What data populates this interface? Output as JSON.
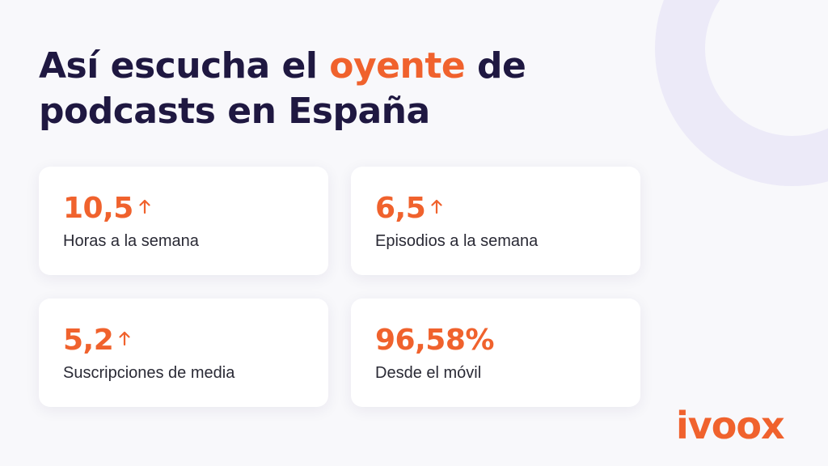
{
  "headline": {
    "part1": "Así escucha el ",
    "accent": "oyente",
    "part2": " de podcasts en España"
  },
  "stats": [
    {
      "value": "10,5",
      "label": "Horas a la semana",
      "trend_icon": "arrow-up-icon"
    },
    {
      "value": "6,5",
      "label": "Episodios a la semana",
      "trend_icon": "arrow-up-icon"
    },
    {
      "value": "5,2",
      "label": "Suscripciones de media",
      "trend_icon": "arrow-up-icon"
    },
    {
      "value": "96,58%",
      "label": "Desde el móvil"
    }
  ],
  "logo": "ivoox",
  "colors": {
    "accent": "#f0622d",
    "headline": "#1f1841",
    "background": "#f8f8fb",
    "card": "#ffffff",
    "decoration": "#eceaf8"
  }
}
